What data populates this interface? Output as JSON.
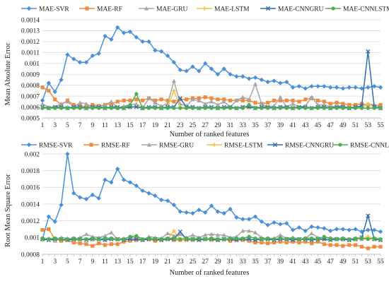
{
  "chart_data": [
    {
      "type": "line",
      "xlabel": "Number of ranked features",
      "ylabel": "Mean Absolute Error",
      "ylim": [
        0.0005,
        0.0014
      ],
      "yticks": [
        "0.0014",
        "0.0013",
        "0.0012",
        "0.0011",
        "0.001",
        "0.0009",
        "0.0008",
        "0.0007",
        "0.0006",
        "0.0005"
      ],
      "ytick_values": [
        0.0014,
        0.0013,
        0.0012,
        0.0011,
        0.001,
        0.0009,
        0.0008,
        0.0007,
        0.0006,
        0.0005
      ],
      "x": [
        1,
        2,
        3,
        4,
        5,
        6,
        7,
        8,
        9,
        10,
        11,
        12,
        13,
        14,
        15,
        16,
        17,
        18,
        19,
        20,
        21,
        22,
        23,
        24,
        25,
        26,
        27,
        28,
        29,
        30,
        31,
        32,
        33,
        34,
        35,
        36,
        37,
        38,
        39,
        40,
        41,
        42,
        43,
        44,
        45,
        46,
        47,
        48,
        49,
        50,
        51,
        52,
        53,
        54,
        55
      ],
      "xticks": [
        1,
        3,
        5,
        7,
        9,
        11,
        13,
        15,
        17,
        19,
        21,
        23,
        25,
        27,
        29,
        31,
        33,
        35,
        37,
        39,
        41,
        43,
        45,
        47,
        49,
        51,
        53,
        55
      ],
      "xlim": [
        1,
        55
      ],
      "grid": true,
      "legend": "top",
      "series": [
        {
          "name": "MAE-SVR",
          "color": "#4a90d9",
          "marker": "diamond",
          "values": [
            0.00066,
            0.00082,
            0.00074,
            0.00085,
            0.00108,
            0.00104,
            0.00101,
            0.00101,
            0.00107,
            0.00109,
            0.00125,
            0.00122,
            0.00133,
            0.00128,
            0.00129,
            0.00124,
            0.0012,
            0.0012,
            0.00112,
            0.00111,
            0.00107,
            0.00101,
            0.00094,
            0.00093,
            0.00097,
            0.00093,
            0.001,
            0.00095,
            0.0009,
            0.00095,
            0.0009,
            0.00088,
            0.00088,
            0.00086,
            0.00087,
            0.00085,
            0.00083,
            0.00084,
            0.00082,
            0.00083,
            0.00078,
            0.00079,
            0.00077,
            0.00079,
            0.00079,
            0.00079,
            0.00078,
            0.00078,
            0.00077,
            0.00078,
            0.00078,
            0.00077,
            0.00078,
            0.00079,
            0.00078
          ]
        },
        {
          "name": "MAE-RF",
          "color": "#f08a3c",
          "marker": "square",
          "values": [
            0.00078,
            0.00075,
            0.00067,
            0.00062,
            0.00066,
            0.00062,
            0.00061,
            0.0006,
            0.00062,
            0.00061,
            0.00062,
            0.00063,
            0.00065,
            0.00066,
            0.00066,
            0.00067,
            0.00066,
            0.00068,
            0.00066,
            0.00067,
            0.00066,
            0.00065,
            0.00067,
            0.00067,
            0.00068,
            0.00068,
            0.00069,
            0.00068,
            0.00067,
            0.00067,
            0.00066,
            0.00066,
            0.00066,
            0.00066,
            0.00064,
            0.00063,
            0.00064,
            0.00066,
            0.00066,
            0.00066,
            0.00066,
            0.00065,
            0.00067,
            0.00068,
            0.00066,
            0.00065,
            0.00063,
            0.00064,
            0.00063,
            0.00062,
            0.00062,
            0.00063,
            0.00062,
            0.00061,
            0.00062
          ]
        },
        {
          "name": "MAE-GRU",
          "color": "#a6a6a6",
          "marker": "triangle",
          "values": [
            0.00063,
            0.0006,
            0.0006,
            0.00063,
            0.00065,
            0.0006,
            0.00064,
            0.00063,
            0.0006,
            0.0006,
            0.00062,
            0.00065,
            0.00059,
            0.00061,
            0.00062,
            0.00063,
            0.00059,
            0.00068,
            0.00064,
            0.00061,
            0.00063,
            0.00084,
            0.00063,
            0.00061,
            0.00067,
            0.00066,
            0.00063,
            0.00065,
            0.00062,
            0.00065,
            0.0006,
            0.00066,
            0.00069,
            0.00067,
            0.00081,
            0.00063,
            0.0006,
            0.00061,
            0.00069,
            0.0006,
            0.00063,
            0.0006,
            0.00061,
            0.00069,
            0.00062,
            0.00062,
            0.0006,
            0.00061,
            0.00061,
            0.00059,
            0.0006,
            0.0006,
            0.00063,
            0.00062,
            0.0006
          ]
        },
        {
          "name": "MAE-LSTM",
          "color": "#f5c242",
          "marker": "cross",
          "values": [
            0.00059,
            0.0006,
            0.00059,
            0.00059,
            0.0006,
            0.00059,
            0.00059,
            0.0006,
            0.00059,
            0.0006,
            0.00059,
            0.0006,
            0.00059,
            0.0006,
            0.00059,
            0.00061,
            0.0006,
            0.00059,
            0.0006,
            0.00059,
            0.0006,
            0.00075,
            0.0006,
            0.00059,
            0.0006,
            0.00059,
            0.0006,
            0.00059,
            0.0006,
            0.00059,
            0.0006,
            0.00059,
            0.0006,
            0.00059,
            0.0006,
            0.00059,
            0.0006,
            0.00059,
            0.0006,
            0.00059,
            0.0006,
            0.00059,
            0.0006,
            0.00059,
            0.0006,
            0.0006,
            0.00059,
            0.0006,
            0.00059,
            0.0006,
            0.00059,
            0.00061,
            0.00063,
            0.0006,
            0.00059
          ]
        },
        {
          "name": "MAE-CNNGRU",
          "color": "#2f6fb0",
          "marker": "x",
          "values": [
            0.0006,
            0.00059,
            0.0006,
            0.0006,
            0.00059,
            0.0006,
            0.0006,
            0.00059,
            0.0006,
            0.0006,
            0.00059,
            0.0006,
            0.0006,
            0.00059,
            0.0006,
            0.0006,
            0.00059,
            0.0006,
            0.0006,
            0.00059,
            0.0006,
            0.0006,
            0.00068,
            0.0006,
            0.0006,
            0.00059,
            0.0006,
            0.0006,
            0.00059,
            0.0006,
            0.0006,
            0.00059,
            0.0006,
            0.0006,
            0.00059,
            0.0006,
            0.0006,
            0.00059,
            0.0006,
            0.0006,
            0.00059,
            0.0006,
            0.0006,
            0.00059,
            0.0006,
            0.0006,
            0.00059,
            0.0006,
            0.0006,
            0.00059,
            0.0006,
            0.00061,
            0.00111,
            0.0006,
            0.00059
          ]
        },
        {
          "name": "MAE-CNNLSTM",
          "color": "#4caf50",
          "marker": "circle",
          "values": [
            0.00059,
            0.00059,
            0.00059,
            0.00059,
            0.00059,
            0.00059,
            0.00059,
            0.00059,
            0.00059,
            0.00059,
            0.00059,
            0.00059,
            0.00059,
            0.00059,
            0.00062,
            0.00072,
            0.00059,
            0.00059,
            0.00059,
            0.00059,
            0.00059,
            0.00059,
            0.00059,
            0.00059,
            0.00059,
            0.00059,
            0.00059,
            0.00059,
            0.00059,
            0.00059,
            0.00059,
            0.00059,
            0.00059,
            0.00062,
            0.00059,
            0.00059,
            0.00059,
            0.00059,
            0.00059,
            0.00059,
            0.00059,
            0.00059,
            0.00059,
            0.00059,
            0.00059,
            0.00059,
            0.00059,
            0.00059,
            0.00059,
            0.00059,
            0.00059,
            0.00059,
            0.00059,
            0.00059,
            0.00059
          ]
        }
      ]
    },
    {
      "type": "line",
      "xlabel": "Number of ranked features",
      "ylabel": "Root Mean Square Error",
      "ylim": [
        0.0008,
        0.002
      ],
      "yticks": [
        "0.002",
        "0.0018",
        "0.0016",
        "0.0014",
        "0.0012",
        "0.001",
        "0.0008"
      ],
      "ytick_values": [
        0.002,
        0.0018,
        0.0016,
        0.0014,
        0.0012,
        0.001,
        0.0008
      ],
      "x": [
        1,
        2,
        3,
        4,
        5,
        6,
        7,
        8,
        9,
        10,
        11,
        12,
        13,
        14,
        15,
        16,
        17,
        18,
        19,
        20,
        21,
        22,
        23,
        24,
        25,
        26,
        27,
        28,
        29,
        30,
        31,
        32,
        33,
        34,
        35,
        36,
        37,
        38,
        39,
        40,
        41,
        42,
        43,
        44,
        45,
        46,
        47,
        48,
        49,
        50,
        51,
        52,
        53,
        54,
        55
      ],
      "xticks": [
        1,
        3,
        5,
        7,
        9,
        11,
        13,
        15,
        17,
        19,
        21,
        23,
        25,
        27,
        29,
        31,
        33,
        35,
        37,
        39,
        41,
        43,
        45,
        47,
        49,
        51,
        53,
        55
      ],
      "xlim": [
        1,
        55
      ],
      "grid": true,
      "legend": "top",
      "series": [
        {
          "name": "RMSE-SVR",
          "color": "#4a90d9",
          "marker": "diamond",
          "values": [
            0.00098,
            0.00125,
            0.00119,
            0.00139,
            0.002,
            0.00153,
            0.00148,
            0.00146,
            0.00151,
            0.00147,
            0.00169,
            0.00166,
            0.00182,
            0.00169,
            0.00166,
            0.00162,
            0.00156,
            0.00153,
            0.0015,
            0.00145,
            0.00144,
            0.00139,
            0.00131,
            0.0013,
            0.00129,
            0.00133,
            0.0013,
            0.00138,
            0.00131,
            0.00129,
            0.00134,
            0.00124,
            0.00122,
            0.00122,
            0.00125,
            0.00119,
            0.00115,
            0.00118,
            0.00116,
            0.00117,
            0.00109,
            0.00112,
            0.00108,
            0.00113,
            0.00112,
            0.00111,
            0.00108,
            0.0011,
            0.0011,
            0.00109,
            0.0011,
            0.00107,
            0.00109,
            0.00109,
            0.00107
          ]
        },
        {
          "name": "RMSE-RF",
          "color": "#f08a3c",
          "marker": "square",
          "values": [
            0.00109,
            0.0011,
            0.00098,
            0.00096,
            0.00097,
            0.00094,
            0.00093,
            0.00092,
            0.0009,
            0.00093,
            0.00091,
            0.00092,
            0.00092,
            0.00095,
            0.00096,
            0.00097,
            0.00097,
            0.00098,
            0.00096,
            0.00097,
            0.00098,
            0.00097,
            0.00097,
            0.00097,
            0.00097,
            0.00098,
            0.00098,
            0.00097,
            0.00097,
            0.00098,
            0.00096,
            0.00097,
            0.00097,
            0.00096,
            0.00094,
            0.00094,
            0.00093,
            0.00094,
            0.00095,
            0.00094,
            0.00095,
            0.00094,
            0.00095,
            0.00093,
            0.00095,
            0.00092,
            0.00091,
            0.00091,
            0.0009,
            0.00091,
            0.00091,
            0.00089,
            0.00087,
            0.00089,
            0.00089
          ]
        },
        {
          "name": "RMSE-GRU",
          "color": "#a6a6a6",
          "marker": "triangle",
          "values": [
            0.00098,
            0.00099,
            0.00096,
            0.001,
            0.00099,
            0.00097,
            0.001,
            0.00104,
            0.00101,
            0.001,
            0.00102,
            0.00106,
            0.00098,
            0.00099,
            0.001,
            0.001,
            0.00097,
            0.00101,
            0.001,
            0.00099,
            0.00105,
            0.00102,
            0.00104,
            0.001,
            0.00103,
            0.001,
            0.00103,
            0.00104,
            0.00103,
            0.00103,
            0.001,
            0.00101,
            0.00108,
            0.00108,
            0.00106,
            0.001,
            0.00098,
            0.00099,
            0.00103,
            0.00099,
            0.001,
            0.00098,
            0.00099,
            0.00105,
            0.001,
            0.001,
            0.00099,
            0.00099,
            0.00098,
            0.00097,
            0.00098,
            0.00098,
            0.00101,
            0.00098,
            0.00097
          ]
        },
        {
          "name": "RMSE-LSTM",
          "color": "#f5c242",
          "marker": "cross",
          "values": [
            0.00097,
            0.00098,
            0.00097,
            0.00097,
            0.00098,
            0.00097,
            0.00097,
            0.00098,
            0.00097,
            0.00098,
            0.00097,
            0.00098,
            0.00097,
            0.00098,
            0.00097,
            0.00099,
            0.00098,
            0.00097,
            0.00098,
            0.00097,
            0.00098,
            0.00108,
            0.00098,
            0.00097,
            0.00098,
            0.00097,
            0.00098,
            0.00097,
            0.00098,
            0.00097,
            0.00098,
            0.00097,
            0.00098,
            0.00097,
            0.00098,
            0.00097,
            0.00098,
            0.00097,
            0.00098,
            0.00097,
            0.00098,
            0.00097,
            0.00098,
            0.00097,
            0.00098,
            0.00097,
            0.00097,
            0.00098,
            0.00097,
            0.00098,
            0.00097,
            0.00099,
            0.00101,
            0.00098,
            0.00097
          ]
        },
        {
          "name": "RMSE-CNNGRU",
          "color": "#2f6fb0",
          "marker": "x",
          "values": [
            0.00098,
            0.00097,
            0.00098,
            0.00098,
            0.00097,
            0.00098,
            0.00098,
            0.00097,
            0.00098,
            0.00098,
            0.00097,
            0.00098,
            0.00098,
            0.00097,
            0.00098,
            0.00098,
            0.00097,
            0.00098,
            0.00098,
            0.00097,
            0.00098,
            0.00098,
            0.00107,
            0.00098,
            0.00098,
            0.00097,
            0.00098,
            0.00098,
            0.00097,
            0.00098,
            0.00098,
            0.00097,
            0.00098,
            0.00098,
            0.00097,
            0.00098,
            0.00098,
            0.00097,
            0.00098,
            0.00098,
            0.00097,
            0.00098,
            0.00098,
            0.00097,
            0.00098,
            0.00098,
            0.00097,
            0.00098,
            0.00098,
            0.00097,
            0.00098,
            0.001,
            0.00126,
            0.00098,
            0.00097
          ]
        },
        {
          "name": "RMSE-CNNLSTM",
          "color": "#4caf50",
          "marker": "circle",
          "values": [
            0.00099,
            0.00098,
            0.00099,
            0.00098,
            0.00098,
            0.00099,
            0.00098,
            0.00098,
            0.00099,
            0.00098,
            0.00099,
            0.00099,
            0.00098,
            0.00098,
            0.00101,
            0.00102,
            0.00098,
            0.00099,
            0.00098,
            0.00098,
            0.00099,
            0.00099,
            0.00098,
            0.00099,
            0.00098,
            0.00099,
            0.00098,
            0.00099,
            0.00098,
            0.00098,
            0.00099,
            0.00099,
            0.00099,
            0.00101,
            0.00099,
            0.00098,
            0.00099,
            0.00098,
            0.00099,
            0.00098,
            0.00099,
            0.00098,
            0.00099,
            0.00099,
            0.00098,
            0.00101,
            0.00099,
            0.00098,
            0.00099,
            0.00098,
            0.00099,
            0.00099,
            0.00098,
            0.00099,
            0.00098
          ]
        }
      ]
    }
  ]
}
